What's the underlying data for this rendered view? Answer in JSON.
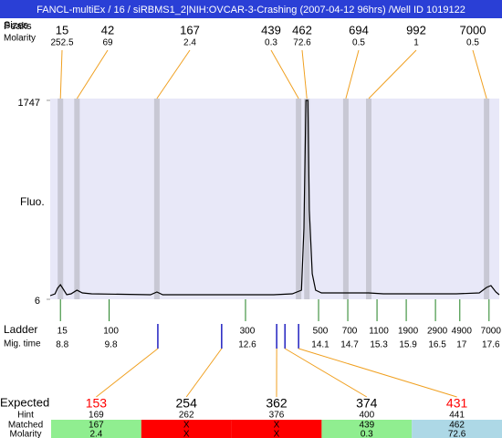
{
  "header": {
    "title": "FANCL-multiEx / 16 / siRBMS1_2|NIH:OVCAR-3-Crashing (2007-04-12 96hrs) /Well ID 1019122"
  },
  "chart_data": {
    "type": "line",
    "y_label": "Fluo.",
    "color": "#000000",
    "x": [
      8.59,
      8.69,
      8.74,
      8.8,
      8.86,
      8.93,
      9.02,
      9.14,
      9.25,
      9.44,
      10.65,
      10.78,
      10.9,
      13.18,
      13.56,
      13.75,
      13.8,
      13.84,
      13.88,
      13.91,
      13.97,
      14.04,
      14.16,
      14.66,
      15.13,
      15.43,
      16.93,
      17.4,
      17.55,
      17.64,
      17.74,
      17.81
    ],
    "values": [
      38,
      54,
      102,
      134,
      94,
      46,
      54,
      86,
      62,
      54,
      46,
      70,
      46,
      46,
      54,
      86,
      629,
      1747,
      1747,
      789,
      230,
      86,
      62,
      62,
      62,
      54,
      54,
      62,
      110,
      126,
      70,
      46
    ],
    "xlim": [
      8.59,
      17.81
    ],
    "ylim": [
      6,
      1747
    ],
    "yticks": [
      6,
      1747
    ],
    "peaks": {
      "size_label": "Sizes",
      "peak_label": "Peaks",
      "molarity_label": "Molarity",
      "sizes": [
        15,
        42,
        167,
        439,
        462,
        694,
        992,
        7000
      ],
      "molarity": [
        252.5,
        69,
        2.4,
        0.3,
        72.6,
        0.5,
        1,
        0.5
      ],
      "x": [
        8.8,
        9.14,
        10.78,
        13.69,
        13.86,
        14.66,
        15.13,
        17.55
      ]
    },
    "ladder": {
      "label": "Ladder",
      "time_label": "Mig. time",
      "sizes": [
        15,
        100,
        300,
        500,
        700,
        1100,
        1900,
        2900,
        4900,
        7000
      ],
      "times": [
        8.8,
        9.8,
        12.6,
        14.1,
        14.7,
        15.3,
        15.9,
        16.5,
        17,
        17.6
      ]
    },
    "expected": {
      "label": "Expected",
      "hint_label": "Hint",
      "matched_label": "Matched",
      "molarity_label": "Molarity",
      "values": [
        153,
        254,
        362,
        374,
        431
      ],
      "value_colors": [
        "#ff0000",
        "#000000",
        "#000000",
        "#000000",
        "#ff0000"
      ],
      "hint": [
        169,
        262,
        376,
        400,
        441
      ],
      "matched": [
        167,
        "X",
        "X",
        439,
        462
      ],
      "molarity": [
        2.4,
        "X",
        "X",
        0.3,
        72.6
      ],
      "cell_colors": [
        "#90ee90",
        "#ff0000",
        "#ff0000",
        "#90ee90",
        "#add8e6"
      ],
      "x": [
        10.8,
        12.11,
        13.24,
        13.41,
        13.69
      ]
    }
  }
}
